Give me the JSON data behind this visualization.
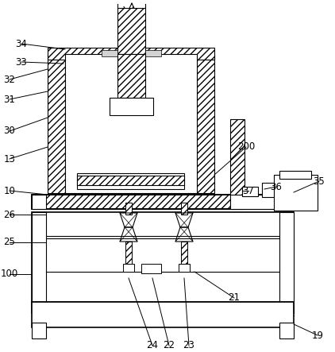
{
  "fig_width": 4.22,
  "fig_height": 4.43,
  "dpi": 100,
  "bg": "#ffffff"
}
